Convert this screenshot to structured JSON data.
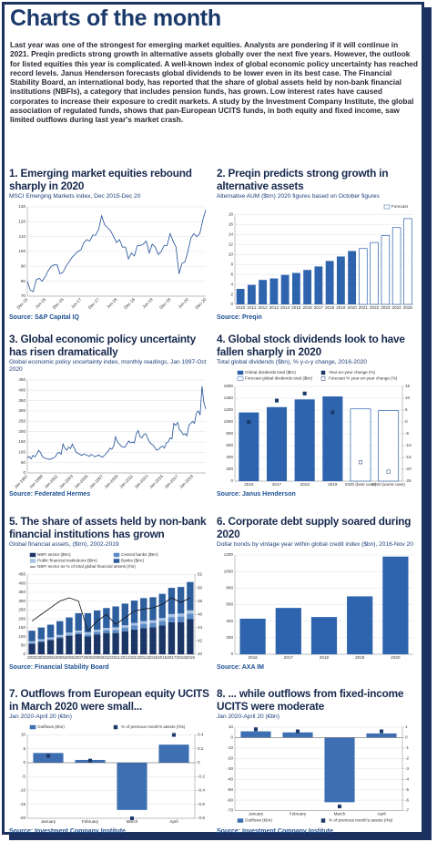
{
  "header": {
    "title": "Charts of the month"
  },
  "intro": "Last year was one of the strongest for emerging market equities. Analysts are pondering if it will continue in 2021. Preqin predicts strong growth in alternative assets globally over the next five years. However, the outlook for listed equities this year is complicated. A well-known index of global economic policy uncertainty has reached record levels. Janus Henderson forecasts global dividends to be lower even in its best case. The Financial Stability Board, an international body, has reported that the share of global assets held by non-bank financial institutions (NBFIs), a category that includes pension funds, has grown. Low interest rates have caused corporates to increase their exposure to credit markets. A study by the Investment Company Institute, the global association of regulated funds, shows that pan-European UCITS funds, in both equity and fixed income, saw limited outflows during last year's market crash.",
  "chart_data": [
    {
      "type": "line",
      "title": "1. Emerging market equities rebound sharply in 2020",
      "subtitle": "MSCI Emerging Markets index, Dec 2015-Dec 20",
      "source": "Source: S&P Capital IQ",
      "categories": [
        "Dec-15",
        null,
        null,
        null,
        null,
        null,
        "Jun-16",
        null,
        null,
        null,
        null,
        null,
        "Dec-16",
        null,
        null,
        null,
        null,
        null,
        "Jun-17",
        null,
        null,
        null,
        null,
        null,
        "Dec-17",
        null,
        null,
        null,
        null,
        null,
        "Jun-18",
        null,
        null,
        null,
        null,
        null,
        "Dec-18",
        null,
        null,
        null,
        null,
        null,
        "Jun-19",
        null,
        null,
        null,
        null,
        null,
        "Dec-19",
        null,
        null,
        null,
        null,
        null,
        "Jun-20",
        null,
        null,
        null,
        null,
        null,
        "Dec-20"
      ],
      "values": [
        80,
        74,
        73,
        81,
        82,
        80,
        83,
        87,
        90,
        91,
        91,
        85,
        86,
        90,
        93,
        96,
        98,
        100,
        101,
        106,
        108,
        107,
        111,
        111,
        115,
        124,
        118,
        116,
        114,
        110,
        106,
        108,
        103,
        103,
        95,
        99,
        97,
        104,
        104,
        105,
        107,
        99,
        105,
        103,
        98,
        100,
        104,
        104,
        112,
        107,
        103,
        85,
        92,
        93,
        100,
        109,
        112,
        110,
        112,
        121,
        128
      ],
      "color": "#1f4e96",
      "ylim": [
        70,
        130
      ],
      "yticks": [
        70,
        80,
        90,
        100,
        110,
        120,
        130
      ],
      "grid": true
    },
    {
      "type": "bar",
      "title": "2. Preqin predicts strong growth in alternative assets",
      "subtitle": "Alternative AUM ($trn) 2020 figures based on October figures",
      "source": "Source: Preqin",
      "categories": [
        "2010",
        "2011",
        "2012",
        "2013",
        "2014",
        "2015",
        "2016",
        "2017",
        "2018",
        "2019",
        "2020",
        "2021",
        "2022",
        "2023",
        "2024",
        "2025"
      ],
      "series": [
        {
          "color": "#2e63ad",
          "values": [
            3.1,
            3.9,
            4.9,
            5.2,
            5.9,
            6.3,
            6.9,
            7.6,
            8.7,
            9.6,
            10.7,
            null,
            null,
            null,
            null,
            null
          ]
        },
        {
          "name": "Forecast",
          "color": "#2e63ad",
          "hollow": true,
          "values": [
            null,
            null,
            null,
            null,
            null,
            null,
            null,
            null,
            null,
            null,
            null,
            11.2,
            12.4,
            13.8,
            15.4,
            17.2
          ]
        }
      ],
      "ylim": [
        0,
        18
      ],
      "yticks": [
        0,
        2,
        4,
        6,
        8,
        10,
        12,
        14,
        16,
        18
      ],
      "grid": true,
      "legend": "top-right"
    },
    {
      "type": "line",
      "title": "3. Global economic policy uncertainty has risen dramatically",
      "subtitle": "Global economic policy uncertainty index, monthly readings, Jan 1997-Oct 2020",
      "source": "Source: Federated Hermes",
      "categories": [
        "Jan-1997",
        null,
        null,
        null,
        null,
        null,
        null,
        null,
        "Jan-1999",
        null,
        null,
        null,
        null,
        null,
        null,
        null,
        "Jan-2001",
        null,
        null,
        null,
        null,
        null,
        null,
        null,
        "Jan-2003",
        null,
        null,
        null,
        null,
        null,
        null,
        null,
        "Jan-2005",
        null,
        null,
        null,
        null,
        null,
        null,
        null,
        "Jan-2007",
        null,
        null,
        null,
        null,
        null,
        null,
        null,
        "Jan-2009",
        null,
        null,
        null,
        null,
        null,
        null,
        null,
        "Jan-2011",
        null,
        null,
        null,
        null,
        null,
        null,
        null,
        "Jan-2013",
        null,
        null,
        null,
        null,
        null,
        null,
        null,
        "Jan-2015",
        null,
        null,
        null,
        null,
        null,
        null,
        null,
        "Jan-2017",
        null,
        null,
        null,
        null,
        null,
        null,
        null,
        "Jan-2019",
        null,
        null,
        null,
        null,
        null,
        null,
        null
      ],
      "values": [
        72,
        80,
        68,
        85,
        78,
        90,
        110,
        100,
        80,
        72,
        70,
        68,
        65,
        70,
        72,
        80,
        95,
        100,
        90,
        140,
        120,
        110,
        125,
        118,
        140,
        120,
        100,
        95,
        90,
        85,
        92,
        88,
        85,
        80,
        90,
        84,
        78,
        82,
        88,
        80,
        76,
        85,
        95,
        105,
        120,
        115,
        130,
        175,
        150,
        140,
        130,
        125,
        125,
        140,
        155,
        145,
        150,
        145,
        190,
        205,
        175,
        170,
        185,
        190,
        170,
        150,
        140,
        135,
        120,
        110,
        115,
        125,
        130,
        120,
        145,
        150,
        170,
        165,
        240,
        230,
        245,
        210,
        200,
        185,
        190,
        180,
        230,
        240,
        250,
        240,
        290,
        300,
        280,
        420,
        340,
        310
      ],
      "color": "#1f4e96",
      "ylim": [
        0,
        450
      ],
      "yticks": [
        0,
        50,
        100,
        150,
        200,
        250,
        300,
        350,
        400,
        450
      ],
      "grid": true
    },
    {
      "type": "bar",
      "title": "4. Global stock dividends look to have fallen sharply in 2020",
      "subtitle": "Total global dividends ($bn), % y-o-y change, 2016-2020",
      "source": "Source: Janus Henderson",
      "categories": [
        "2016",
        "2017",
        "2018",
        "2019",
        "2020 (best case)",
        "2020 (worst case)"
      ],
      "series": [
        {
          "name": "Global dividends total ($bn)",
          "color": "#2e63ad",
          "values": [
            1160,
            1250,
            1380,
            1430,
            null,
            null
          ]
        },
        {
          "name": "Year-on-year change (%)",
          "type": "marker",
          "axis": "y2",
          "color": "#1b3a6b",
          "values": [
            0,
            9,
            12,
            4,
            null,
            null
          ]
        },
        {
          "name": "Forecast global dividends total ($bn)",
          "color": "#2e63ad",
          "hollow": true,
          "values": [
            null,
            null,
            null,
            null,
            1220,
            1190
          ]
        },
        {
          "name": "Forecast % year-on-year change (%)",
          "type": "marker",
          "axis": "y2",
          "color": "#1b3a6b",
          "hollow": true,
          "values": [
            null,
            null,
            null,
            null,
            -17,
            -21
          ]
        }
      ],
      "ylim": [
        0,
        1600
      ],
      "yticks": [
        0,
        200,
        400,
        600,
        800,
        1000,
        1200,
        1400,
        1600
      ],
      "y2lim": [
        -25,
        15
      ],
      "y2ticks": [
        -25,
        -20,
        -15,
        -10,
        -5,
        0,
        5,
        10,
        15
      ],
      "grid": true,
      "legend": "top-left"
    },
    {
      "type": "bar",
      "stacked": true,
      "title": "5. The share of assets held by non-bank financial institutions has grown",
      "subtitle": "Global financial assets, ($trn), 2002-2019",
      "source": "Source: Financial Stability Board",
      "categories": [
        "2002",
        "2003",
        "2004",
        "2005",
        "2006",
        "2007",
        "2008",
        "2009",
        "2010",
        "2011",
        "2012",
        "2013",
        "2014",
        "2015",
        "2016",
        "2017",
        "2018",
        "2019"
      ],
      "series": [
        {
          "name": "NBFI sector ($trn)",
          "color": "#1a3566",
          "values": [
            60,
            70,
            80,
            92,
            104,
            114,
            100,
            112,
            120,
            120,
            130,
            140,
            148,
            152,
            162,
            180,
            182,
            198
          ]
        },
        {
          "name": "Central banks ($trn)",
          "color": "#5b8ac6",
          "values": [
            5,
            6,
            6,
            7,
            8,
            9,
            12,
            14,
            16,
            18,
            20,
            22,
            24,
            25,
            27,
            30,
            31,
            32
          ]
        },
        {
          "name": "Public financial institutions ($trn)",
          "color": "#a9c3e3",
          "values": [
            8,
            9,
            9,
            10,
            10,
            11,
            12,
            13,
            13,
            14,
            14,
            15,
            15,
            15,
            16,
            17,
            17,
            18
          ]
        },
        {
          "name": "Banks ($trn)",
          "color": "#2d5e9e",
          "values": [
            60,
            66,
            72,
            78,
            86,
            98,
            108,
            108,
            112,
            118,
            122,
            126,
            130,
            130,
            136,
            148,
            150,
            160
          ]
        },
        {
          "name": "NBFI sector as % of total global financial assets (rhs)",
          "type": "line",
          "axis": "y2",
          "color": "#111111",
          "values": [
            45,
            46,
            47,
            48,
            48.5,
            48,
            43.5,
            45,
            46,
            44.5,
            45.5,
            46.5,
            46.8,
            47,
            47.5,
            48.5,
            47.8,
            48.5
          ]
        }
      ],
      "ylim": [
        0,
        450
      ],
      "yticks": [
        0,
        50,
        100,
        150,
        200,
        250,
        300,
        350,
        400,
        450
      ],
      "y2lim": [
        40,
        52
      ],
      "y2ticks": [
        40,
        42,
        44,
        46,
        48,
        50,
        52
      ],
      "grid": true,
      "legend": "top-left"
    },
    {
      "type": "bar",
      "title": "6. Corporate debt supply soared during 2020",
      "subtitle": "Dollar bonds by vintage year within global credit index ($bn), 2016-Nov 20",
      "source": "Source: AXA IM",
      "categories": [
        "2016",
        "2017",
        "2018",
        "2019",
        "2020"
      ],
      "values": [
        430,
        560,
        450,
        700,
        1180
      ],
      "color": "#2e63ad",
      "ylim": [
        0,
        1200
      ],
      "yticks": [
        0,
        200,
        400,
        600,
        800,
        1000,
        1200
      ],
      "grid": true
    },
    {
      "type": "bar",
      "title": "7. Outflows from European equity UCITS in March 2020 were small...",
      "subtitle": "Jan 2020-April 20 (€bn)",
      "source": "Source: Investment Company Institute",
      "categories": [
        "January",
        "February",
        "March",
        "April"
      ],
      "series": [
        {
          "name": "Outflows (€bn)",
          "color": "#3d6fb2",
          "values": [
            3.5,
            1,
            -17,
            6.5
          ]
        },
        {
          "name": "% of previous month's assets (rhs)",
          "type": "marker",
          "axis": "y2",
          "color": "#1b3a6b",
          "values": [
            0.1,
            0.03,
            -0.8,
            0.4
          ]
        }
      ],
      "ylim": [
        -20,
        10
      ],
      "yticks": [
        -20,
        -15,
        -10,
        -5,
        0,
        5,
        10
      ],
      "y2lim": [
        -0.8,
        0.4
      ],
      "y2ticks": [
        -0.8,
        -0.6,
        -0.4,
        -0.2,
        0,
        0.2,
        0.4
      ],
      "grid": true,
      "legend": "top-left"
    },
    {
      "type": "bar",
      "title": "8. ... while outflows from fixed-income UCITS were moderate",
      "subtitle": "Jan 2020-April 20 (€bn)",
      "source": "Source: Investment Company Institute",
      "categories": [
        "January",
        "February",
        "March",
        "April"
      ],
      "series": [
        {
          "name": "Outflows (€bn)",
          "color": "#3d6fb2",
          "values": [
            6,
            5,
            -62,
            4
          ]
        },
        {
          "name": "% of previous month's assets (rhs)",
          "type": "marker",
          "axis": "y2",
          "color": "#1b3a6b",
          "values": [
            0.8,
            0.6,
            -6.6,
            0.6
          ]
        }
      ],
      "ylim": [
        -70,
        10
      ],
      "yticks": [
        -70,
        -60,
        -50,
        -40,
        -30,
        -20,
        -10,
        0,
        10
      ],
      "y2lim": [
        -7,
        1
      ],
      "y2ticks": [
        -7,
        -6,
        -5,
        -4,
        -3,
        -2,
        -1,
        0,
        1
      ],
      "grid": true,
      "legend": "bottom-left"
    }
  ]
}
